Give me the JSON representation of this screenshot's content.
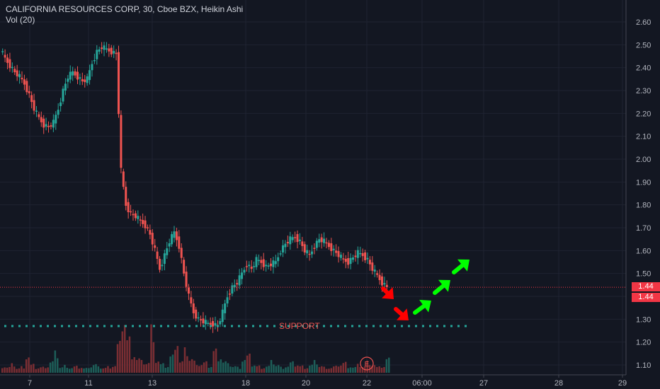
{
  "header": {
    "title": "CALIFORNIA RESOURCES CORP, 30, Cboe BZX, Heikin Ashi",
    "volume_label": "Vol (20)"
  },
  "price_labels": [
    "1.44",
    "1.44"
  ],
  "annotations": {
    "support_label": "SUPPORT",
    "earnings_marker": "E"
  },
  "colors": {
    "background": "#131722",
    "up": "#26a69a",
    "down": "#ef5350",
    "price_line": "#f23645",
    "support_line": "#26a69a",
    "arrow_down": "#ff0000",
    "arrow_up": "#00ff00"
  },
  "chart_data": {
    "type": "candlestick",
    "style": "Heikin Ashi",
    "interval": "30",
    "exchange": "Cboe BZX",
    "y_ticks": [
      "2.60",
      "2.50",
      "2.40",
      "2.30",
      "2.20",
      "2.10",
      "2.00",
      "1.90",
      "1.80",
      "1.70",
      "1.60",
      "1.50",
      "1.40",
      "1.30",
      "1.20",
      "1.10"
    ],
    "x_ticks": [
      "7",
      "11",
      "13",
      "18",
      "20",
      "22",
      "06:00",
      "27",
      "28",
      "29"
    ],
    "ylim": [
      1.07,
      2.66
    ],
    "grid": true,
    "support_level": 1.27,
    "last_price": 1.44,
    "close_path": [
      2.48,
      2.44,
      2.41,
      2.38,
      2.36,
      2.33,
      2.28,
      2.22,
      2.18,
      2.15,
      2.14,
      2.16,
      2.22,
      2.3,
      2.36,
      2.38,
      2.36,
      2.34,
      2.35,
      2.42,
      2.47,
      2.49,
      2.48,
      2.47,
      2.46,
      1.95,
      1.8,
      1.76,
      1.75,
      1.73,
      1.71,
      1.67,
      1.6,
      1.52,
      1.58,
      1.64,
      1.68,
      1.62,
      1.5,
      1.4,
      1.33,
      1.3,
      1.29,
      1.28,
      1.28,
      1.27,
      1.33,
      1.4,
      1.44,
      1.46,
      1.5,
      1.54,
      1.52,
      1.56,
      1.55,
      1.53,
      1.54,
      1.55,
      1.6,
      1.63,
      1.65,
      1.66,
      1.64,
      1.6,
      1.58,
      1.62,
      1.65,
      1.64,
      1.62,
      1.6,
      1.58,
      1.56,
      1.55,
      1.57,
      1.59,
      1.58,
      1.56,
      1.52,
      1.49,
      1.46,
      1.44
    ],
    "volume": [
      0.12,
      0.1,
      0.15,
      0.08,
      0.11,
      0.3,
      0.14,
      0.09,
      0.1,
      0.12,
      0.2,
      0.35,
      0.1,
      0.13,
      0.09,
      0.11,
      0.1,
      0.08,
      0.12,
      0.15,
      0.1,
      0.09,
      0.11,
      0.13,
      0.5,
      1.0,
      0.6,
      0.35,
      0.25,
      0.2,
      0.18,
      0.8,
      0.22,
      0.15,
      0.12,
      0.3,
      0.6,
      0.2,
      0.4,
      0.25,
      0.2,
      0.15,
      0.18,
      0.12,
      0.4,
      0.3,
      0.2,
      0.15,
      0.12,
      0.1,
      0.25,
      0.3,
      0.15,
      0.12,
      0.1,
      0.12,
      0.2,
      0.14,
      0.1,
      0.12,
      0.18,
      0.15,
      0.12,
      0.1,
      0.14,
      0.2,
      0.12,
      0.1,
      0.09,
      0.11,
      0.15,
      0.18,
      0.12,
      0.1,
      0.14,
      0.12,
      0.2,
      0.15,
      0.1,
      0.12,
      0.25
    ]
  }
}
